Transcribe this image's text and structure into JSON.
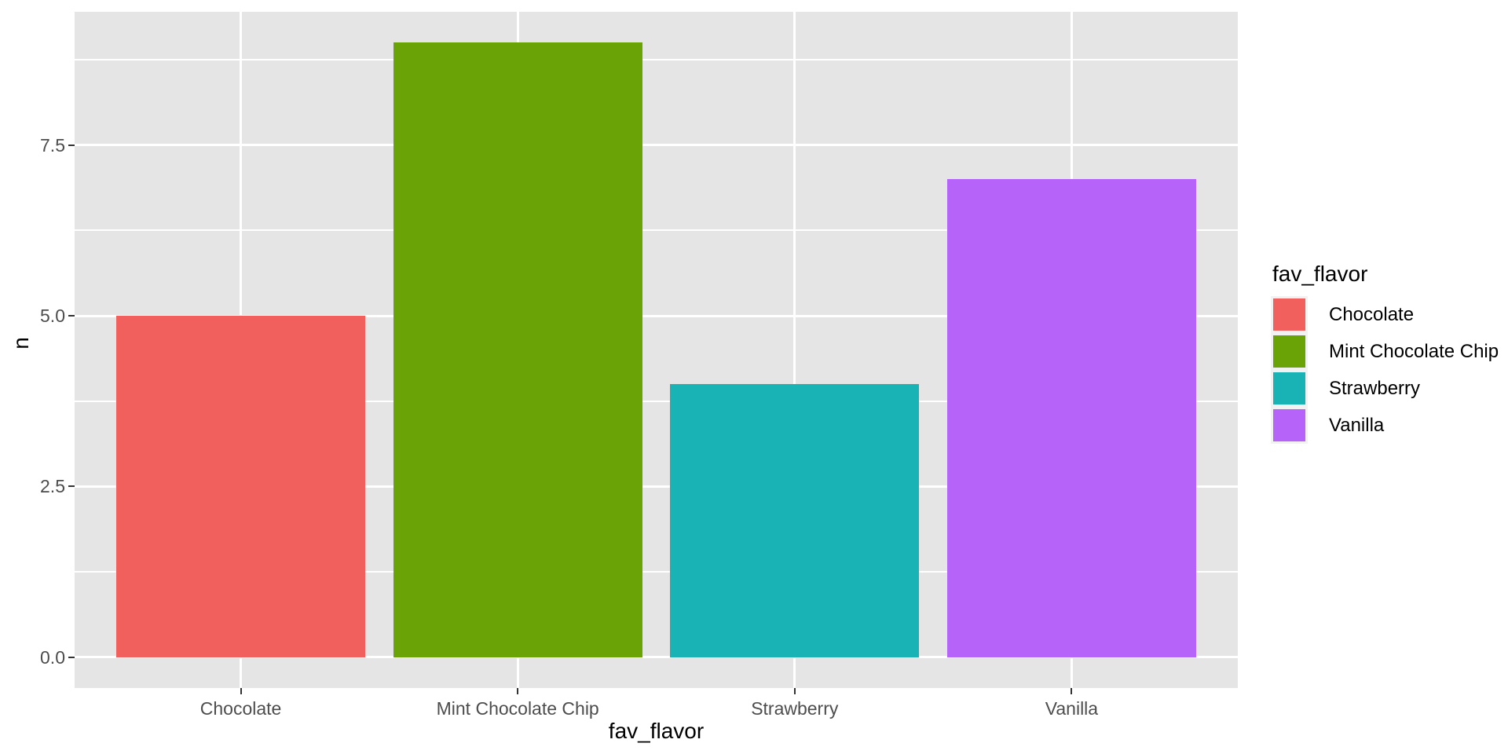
{
  "figure": {
    "background": "#FFFFFF",
    "panel_background": "#E5E5E5",
    "grid_color": "#FFFFFF",
    "axis_text_color": "#4D4D4D",
    "title_color": "#000000"
  },
  "chart_data": {
    "type": "bar",
    "title": "",
    "xlabel": "fav_flavor",
    "ylabel": "n",
    "categories": [
      "Chocolate",
      "Mint Chocolate Chip",
      "Strawberry",
      "Vanilla"
    ],
    "values": [
      5,
      9,
      4,
      7
    ],
    "colors": [
      "#F2605D",
      "#6AA306",
      "#1AB3B5",
      "#B563F8"
    ],
    "ylim": [
      -0.45,
      9.45
    ],
    "xlim": [
      0.4,
      4.6
    ],
    "bar_width": 0.9,
    "grid": true,
    "yticks": {
      "values": [
        0,
        2.5,
        5,
        7.5
      ],
      "labels": [
        "0.0",
        "2.5",
        "5.0",
        "7.5"
      ]
    },
    "yminor": [
      1.25,
      3.75,
      6.25,
      8.75
    ],
    "legend": {
      "title": "fav_flavor",
      "position": "right",
      "entries": [
        {
          "label": "Chocolate",
          "color": "#F2605D"
        },
        {
          "label": "Mint Chocolate Chip",
          "color": "#6AA306"
        },
        {
          "label": "Strawberry",
          "color": "#1AB3B5"
        },
        {
          "label": "Vanilla",
          "color": "#B563F8"
        }
      ]
    }
  }
}
